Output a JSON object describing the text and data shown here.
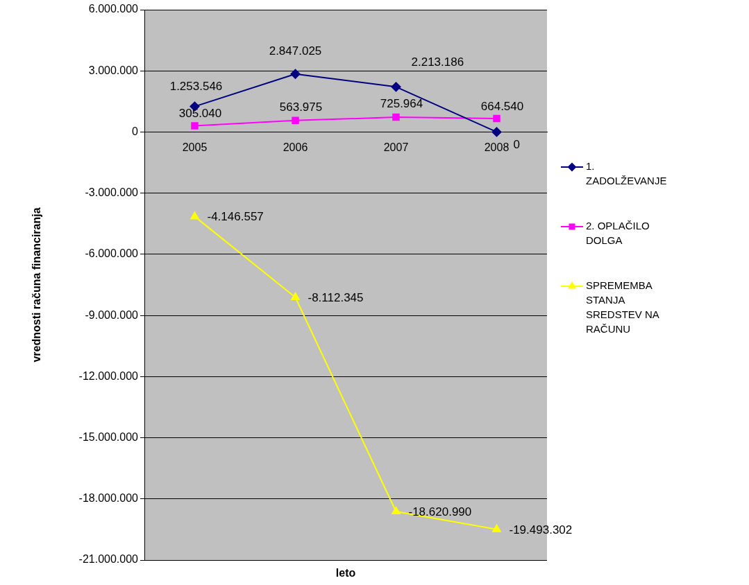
{
  "chart_data": {
    "type": "line",
    "ylabel": "vrednosti računa financiranja",
    "xlabel": "leto",
    "categories": [
      "2005",
      "2006",
      "2007",
      "2008"
    ],
    "series": [
      {
        "name": "1. ZADOLŽEVANJE",
        "color": "#000080",
        "marker": "diamond",
        "values": [
          1253546,
          2847025,
          2213186,
          0
        ],
        "value_labels": [
          "1.253.546",
          "2.847.025",
          "2.213.186",
          "0"
        ]
      },
      {
        "name": "2. OPLAČILO DOLGA",
        "color": "#ff00ff",
        "marker": "square",
        "values": [
          305040,
          563975,
          725964,
          664540
        ],
        "value_labels": [
          "305.040",
          "563.975",
          "725.964",
          "664.540"
        ]
      },
      {
        "name": "SPREMEMBA STANJA SREDSTEV NA RAČUNU",
        "color": "#ffff00",
        "marker": "triangle",
        "values": [
          -4146557,
          -8112345,
          -18620990,
          -19493302
        ],
        "value_labels": [
          "-4.146.557",
          "-8.112.345",
          "-18.620.990",
          "-19.493.302"
        ]
      }
    ],
    "ylim": [
      -21000000,
      6000000
    ],
    "yticks": [
      {
        "value": -21000000,
        "label": "-21.000.000"
      },
      {
        "value": -18000000,
        "label": "-18.000.000"
      },
      {
        "value": -15000000,
        "label": "-15.000.000"
      },
      {
        "value": -12000000,
        "label": "-12.000.000"
      },
      {
        "value": -9000000,
        "label": "-9.000.000"
      },
      {
        "value": -6000000,
        "label": "-6.000.000"
      },
      {
        "value": -3000000,
        "label": "-3.000.000"
      },
      {
        "value": 0,
        "label": "0"
      },
      {
        "value": 3000000,
        "label": "3.000.000"
      },
      {
        "value": 6000000,
        "label": "6.000.000"
      }
    ],
    "grid": "y",
    "legend": "right",
    "line_style": "solid"
  }
}
